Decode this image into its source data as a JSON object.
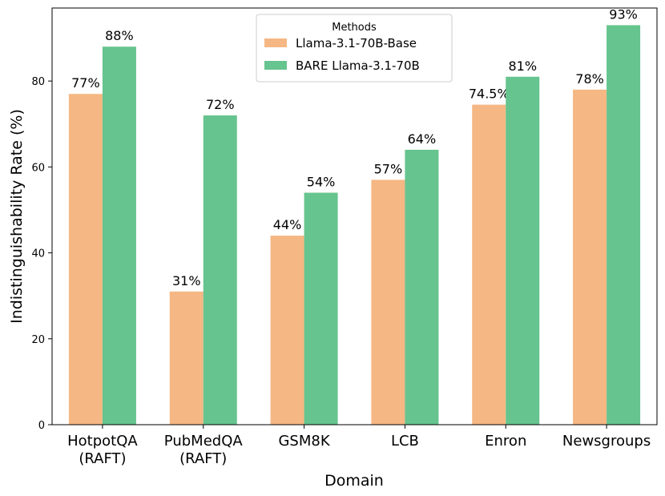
{
  "chart_data": {
    "type": "bar",
    "title": "",
    "xlabel": "Domain",
    "ylabel": "Indistinguishability Rate (%)",
    "ylim": [
      0,
      97
    ],
    "yticks": [
      0,
      20,
      40,
      60,
      80
    ],
    "categories": [
      [
        "HotpotQA",
        "(RAFT)"
      ],
      [
        "PubMedQA",
        "(RAFT)"
      ],
      [
        "GSM8K"
      ],
      [
        "LCB"
      ],
      [
        "Enron"
      ],
      [
        "Newsgroups"
      ]
    ],
    "legend": {
      "title": "Methods",
      "position": "top-center"
    },
    "series": [
      {
        "name": "Llama-3.1-70B-Base",
        "color": "#f5b783",
        "values": [
          77,
          31,
          44,
          57,
          74.5,
          78
        ],
        "labels": [
          "77%",
          "31%",
          "44%",
          "57%",
          "74.5%",
          "78%"
        ]
      },
      {
        "name": "BARE Llama-3.1-70B",
        "color": "#66c48e",
        "values": [
          88,
          72,
          54,
          64,
          81,
          93
        ],
        "labels": [
          "88%",
          "72%",
          "54%",
          "64%",
          "81%",
          "93%"
        ]
      }
    ]
  }
}
